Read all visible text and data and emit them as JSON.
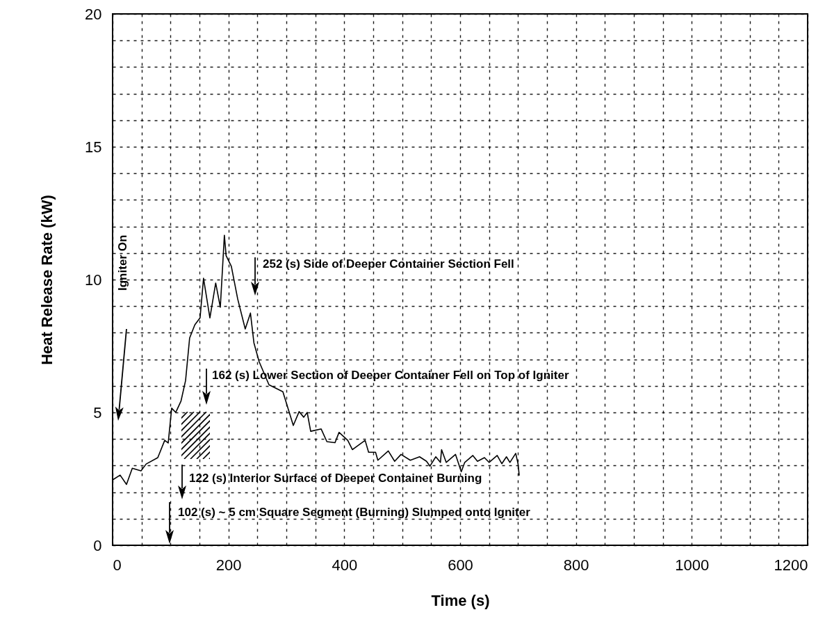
{
  "chart_data": {
    "type": "line",
    "xlabel": "Time (s)",
    "ylabel": "Heat Release Rate (kW)",
    "xlim": [
      0,
      1200
    ],
    "ylim": [
      0,
      20
    ],
    "xticks": [
      0,
      {
        "value": 50,
        "label": null
      },
      {
        "value": 100,
        "label": null
      },
      {
        "value": 150,
        "label": null
      },
      200,
      {
        "value": 250,
        "label": null
      },
      {
        "value": 300,
        "label": null
      },
      {
        "value": 350,
        "label": null
      },
      400,
      {
        "value": 450,
        "label": null
      },
      {
        "value": 500,
        "label": null
      },
      {
        "value": 550,
        "label": null
      },
      600,
      {
        "value": 650,
        "label": null
      },
      {
        "value": 700,
        "label": null
      },
      {
        "value": 750,
        "label": null
      },
      800,
      {
        "value": 850,
        "label": null
      },
      {
        "value": 900,
        "label": null
      },
      {
        "value": 950,
        "label": null
      },
      1000,
      {
        "value": 1050,
        "label": null
      },
      {
        "value": 1100,
        "label": null
      },
      {
        "value": 1150,
        "label": null
      },
      1200
    ],
    "yticks": [
      0,
      {
        "value": 1,
        "label": null
      },
      {
        "value": 2,
        "label": null
      },
      {
        "value": 3,
        "label": null
      },
      {
        "value": 4,
        "label": null
      },
      5,
      {
        "value": 6,
        "label": null
      },
      {
        "value": 7,
        "label": null
      },
      {
        "value": 8,
        "label": null
      },
      {
        "value": 9,
        "label": null
      },
      10,
      {
        "value": 11,
        "label": null
      },
      {
        "value": 12,
        "label": null
      },
      {
        "value": 13,
        "label": null
      },
      {
        "value": 14,
        "label": null
      },
      15,
      {
        "value": 16,
        "label": null
      },
      {
        "value": 17,
        "label": null
      },
      {
        "value": 18,
        "label": null
      },
      {
        "value": 19,
        "label": null
      },
      20
    ],
    "grid": true,
    "marker": "none",
    "line_style": "solid",
    "x": [
      0,
      13,
      24,
      34,
      49,
      58,
      78,
      90,
      96,
      102,
      109,
      118,
      126,
      133,
      142,
      151,
      157,
      168,
      178,
      186,
      193,
      196,
      205,
      216,
      229,
      238,
      244,
      253,
      270,
      294,
      312,
      322,
      330,
      336,
      342,
      360,
      370,
      384,
      391,
      406,
      414,
      436,
      442,
      454,
      458,
      476,
      487,
      498,
      514,
      530,
      542,
      548,
      558,
      566,
      568,
      576,
      592,
      602,
      608,
      622,
      630,
      642,
      650,
      664,
      672,
      680,
      686,
      696,
      700,
      702
    ],
    "series": [
      {
        "color": "#000000",
        "values": [
          2.46,
          2.64,
          2.29,
          2.9,
          2.8,
          3.06,
          3.3,
          3.95,
          3.85,
          5.16,
          5.0,
          5.42,
          6.2,
          7.8,
          8.3,
          8.56,
          10.05,
          8.56,
          9.87,
          8.96,
          11.67,
          10.9,
          10.5,
          9.27,
          8.14,
          8.74,
          7.62,
          6.91,
          6.04,
          5.78,
          4.51,
          5.03,
          4.82,
          5.0,
          4.29,
          4.38,
          3.9,
          3.86,
          4.25,
          3.95,
          3.6,
          3.95,
          3.5,
          3.5,
          3.2,
          3.55,
          3.16,
          3.42,
          3.2,
          3.33,
          3.16,
          2.98,
          3.33,
          3.12,
          3.6,
          3.12,
          3.42,
          2.77,
          3.12,
          3.38,
          3.16,
          3.3,
          3.12,
          3.38,
          3.07,
          3.33,
          3.12,
          3.46,
          3.07,
          2.64
        ]
      }
    ],
    "annotations": [
      "Igniter On",
      "252 (s)  Side of Deeper Container Section Fell",
      "162 (s)   Lower Section of Deeper Container Fell on Top of Igniter",
      "122 (s)   Interior Surface of Deeper Container Burning",
      "102 (s)  ~ 5 cm Square Segment (Burning) Slumped onto Igniter"
    ]
  }
}
